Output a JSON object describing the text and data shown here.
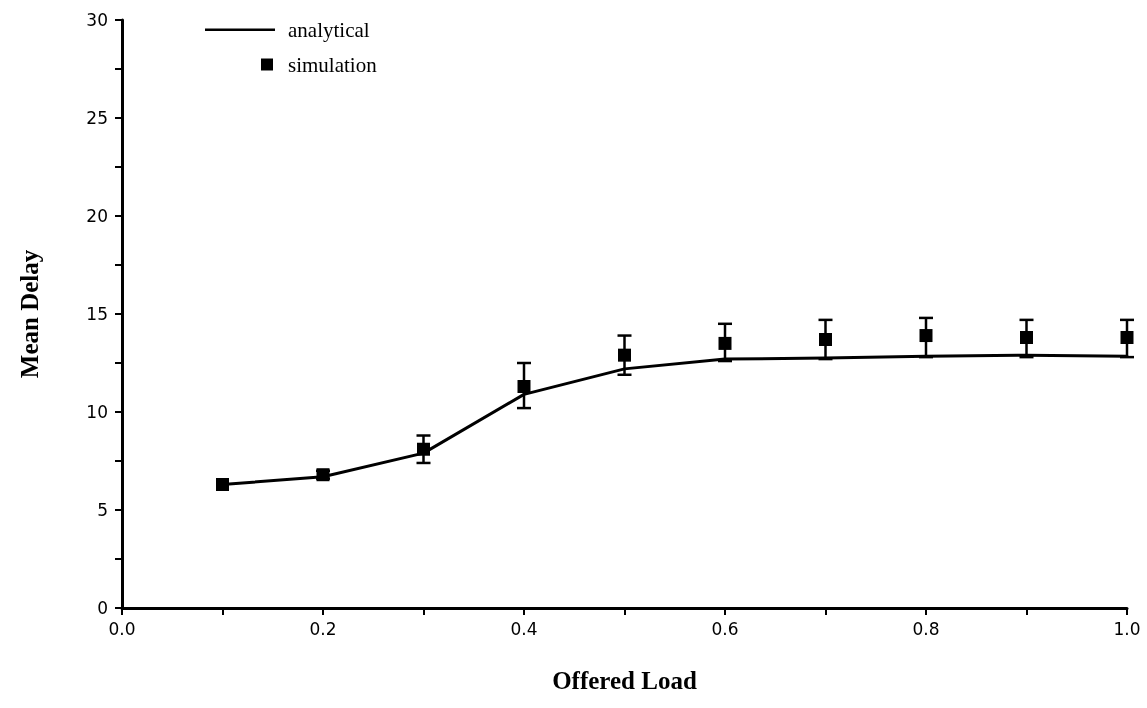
{
  "chart_data": {
    "type": "line",
    "xlabel": "Offered Load",
    "ylabel": "Mean Delay",
    "xlim": [
      0,
      1
    ],
    "ylim": [
      0,
      30
    ],
    "xticks": [
      {
        "value": 0,
        "label": "0.0"
      },
      {
        "value": 0.1,
        "label": null
      },
      {
        "value": 0.2,
        "label": "0.2"
      },
      {
        "value": 0.3,
        "label": null
      },
      {
        "value": 0.4,
        "label": "0.4"
      },
      {
        "value": 0.5,
        "label": null
      },
      {
        "value": 0.6,
        "label": "0.6"
      },
      {
        "value": 0.7,
        "label": null
      },
      {
        "value": 0.8,
        "label": "0.8"
      },
      {
        "value": 0.9,
        "label": null
      },
      {
        "value": 1,
        "label": "1.0"
      }
    ],
    "yticks": [
      0,
      {
        "value": 2.5,
        "label": null
      },
      5,
      {
        "value": 7.5,
        "label": null
      },
      10,
      {
        "value": 12.5,
        "label": null
      },
      15,
      {
        "value": 17.5,
        "label": null
      },
      20,
      {
        "value": 22.5,
        "label": null
      },
      25,
      {
        "value": 27.5,
        "label": null
      },
      30
    ],
    "x": [
      0.1,
      0.2,
      0.3,
      0.4,
      0.5,
      0.6,
      0.7,
      0.8,
      0.9,
      1.0
    ],
    "series": [
      {
        "name": "analytical",
        "color": "#000000",
        "marker": "none",
        "line_style": "solid",
        "values": [
          6.3,
          6.7,
          7.9,
          10.9,
          12.2,
          12.7,
          12.75,
          12.85,
          12.9,
          12.85
        ]
      },
      {
        "name": "simulation",
        "type": "scatter",
        "color": "#000000",
        "marker": "square",
        "values": [
          6.3,
          6.8,
          8.1,
          11.3,
          12.9,
          13.5,
          13.7,
          13.9,
          13.8,
          13.8
        ],
        "errors": [
          null,
          [
            6.6,
            7.0
          ],
          [
            7.4,
            8.8
          ],
          [
            10.2,
            12.5
          ],
          [
            11.9,
            13.9
          ],
          [
            12.6,
            14.5
          ],
          [
            12.7,
            14.7
          ],
          [
            12.8,
            14.8
          ],
          [
            12.8,
            14.7
          ],
          [
            12.8,
            14.7
          ]
        ]
      }
    ],
    "grid": false,
    "legend": "top left"
  }
}
